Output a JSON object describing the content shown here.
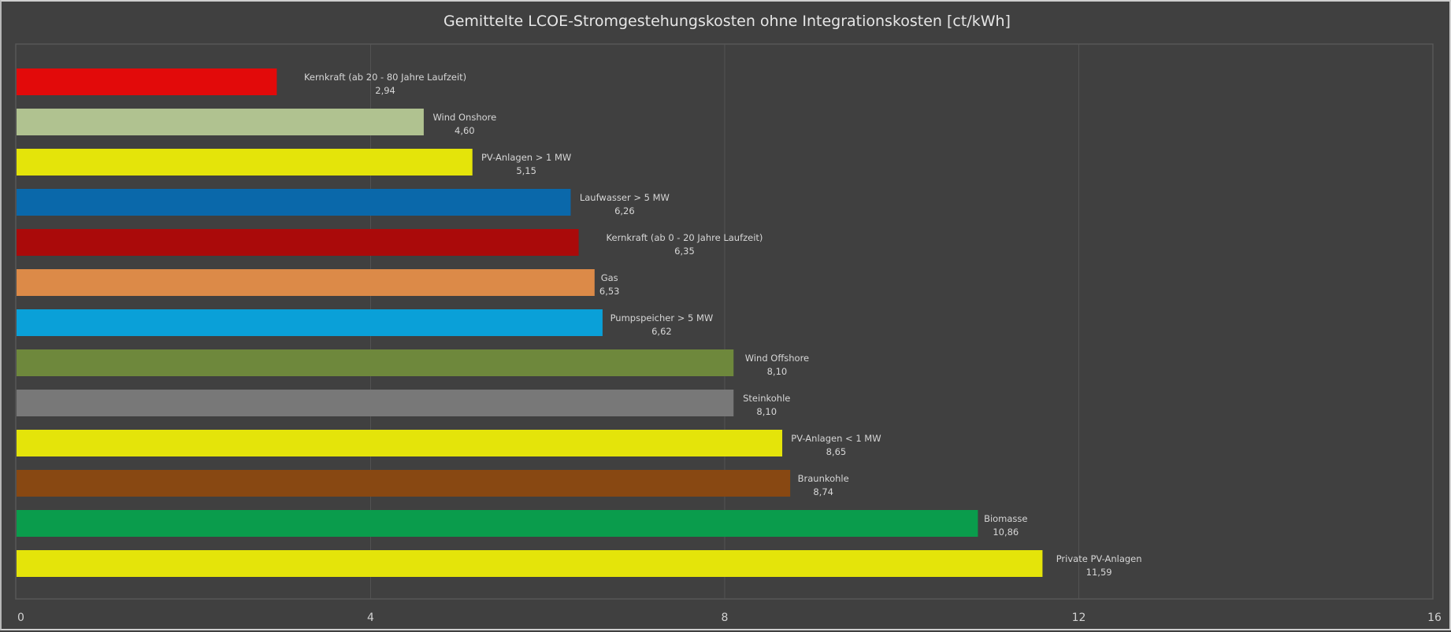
{
  "chart_data": {
    "type": "bar",
    "orientation": "horizontal",
    "title": "Gemittelte LCOE-Stromgestehungskosten  ohne  Integrationskosten  [ct/kWh]",
    "xlabel": "",
    "ylabel": "",
    "xlim": [
      0,
      16
    ],
    "xticks": [
      0,
      4,
      8,
      12,
      16
    ],
    "xtick_labels": [
      "0",
      "4",
      "8",
      "12",
      "16"
    ],
    "grid": true,
    "legend": "none",
    "categories": [
      "Kernkraft  (ab 20 - 80 Jahre  Laufzeit)",
      "Wind  Onshore",
      "PV-Anlagen  > 1 MW",
      "Laufwasser  > 5 MW",
      "Kernkraft  (ab 0 - 20 Jahre  Laufzeit)",
      "Gas",
      "Pumpspeicher  > 5 MW",
      "Wind  Offshore",
      "Steinkohle",
      "PV-Anlagen  < 1 MW",
      "Braunkohle",
      "Biomasse",
      "Private  PV-Anlagen"
    ],
    "values": [
      2.94,
      4.6,
      5.15,
      6.26,
      6.35,
      6.53,
      6.62,
      8.1,
      8.1,
      8.65,
      8.74,
      10.86,
      11.59
    ],
    "value_labels": [
      "2,94",
      "4,60",
      "5,15",
      "6,26",
      "6,35",
      "6,53",
      "6,62",
      "8,10",
      "8,10",
      "8,65",
      "8,74",
      "10,86",
      "11,59"
    ],
    "colors": [
      "#e20a0a",
      "#b0c290",
      "#e4e40a",
      "#0a68aa",
      "#aa0a0a",
      "#dc8a48",
      "#0aa0d8",
      "#6e883c",
      "#787878",
      "#e4e40a",
      "#884812",
      "#0a9c4c",
      "#e4e40a"
    ]
  }
}
